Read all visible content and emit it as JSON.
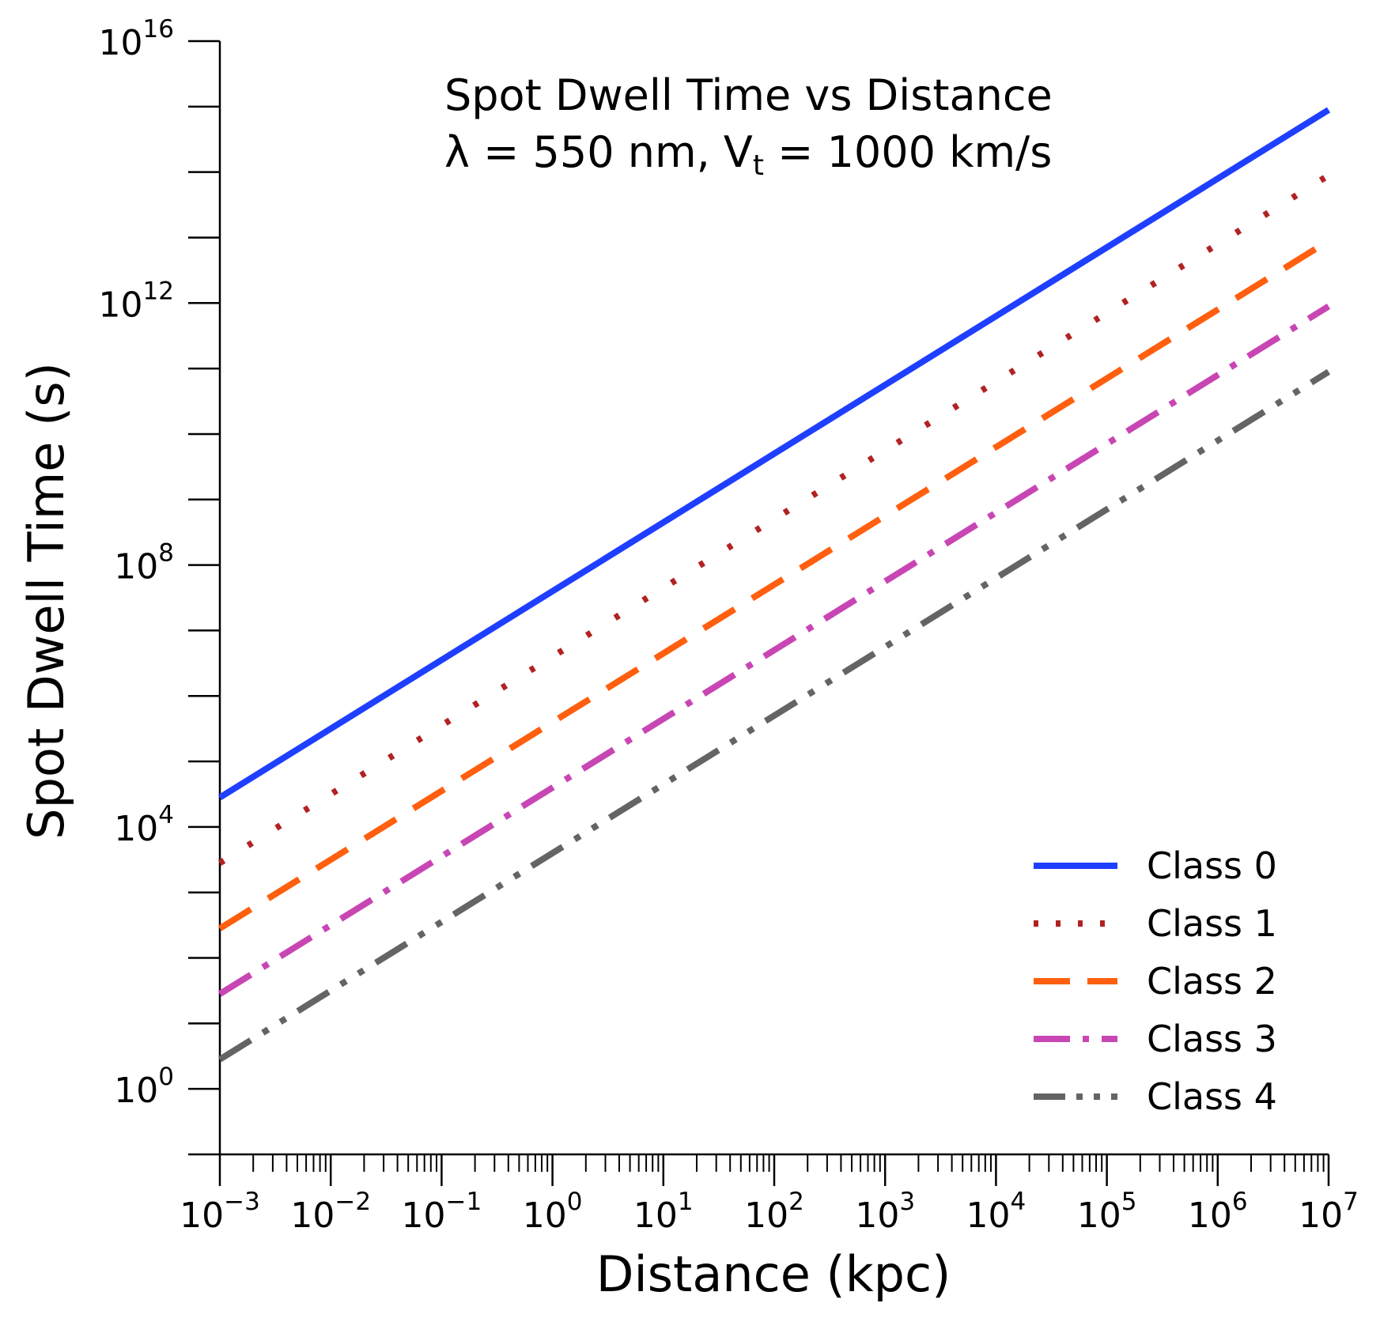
{
  "title": {
    "line1": "Spot Dwell Time vs Distance",
    "line2_prefix": "λ = 550 nm, V",
    "line2_sub": "t",
    "line2_suffix": " = 1000 km/s"
  },
  "chart_data": {
    "type": "line",
    "title": "Spot Dwell Time vs Distance λ = 550 nm, Vt = 1000 km/s",
    "xlabel": "Distance (kpc)",
    "ylabel": "Spot Dwell Time (s)",
    "xscale": "log",
    "yscale": "log",
    "xlim_log10": [
      -3,
      7
    ],
    "ylim_log10": [
      -1,
      16
    ],
    "x_ticks": [
      {
        "base": "10",
        "exp": "−3"
      },
      {
        "base": "10",
        "exp": "−2"
      },
      {
        "base": "10",
        "exp": "−1"
      },
      {
        "base": "10",
        "exp": "0"
      },
      {
        "base": "10",
        "exp": "1"
      },
      {
        "base": "10",
        "exp": "2"
      },
      {
        "base": "10",
        "exp": "3"
      },
      {
        "base": "10",
        "exp": "4"
      },
      {
        "base": "10",
        "exp": "5"
      },
      {
        "base": "10",
        "exp": "6"
      },
      {
        "base": "10",
        "exp": "7"
      }
    ],
    "y_ticks": [
      {
        "base": "10",
        "exp": "0"
      },
      {
        "base": "10",
        "exp": "4"
      },
      {
        "base": "10",
        "exp": "8"
      },
      {
        "base": "10",
        "exp": "12"
      },
      {
        "base": "10",
        "exp": "16"
      }
    ],
    "legend_position": "lower-right",
    "grid": false,
    "series": [
      {
        "name": "Class 0",
        "color": "#1f3fff",
        "style": "solid",
        "x_log10": [
          -3,
          7
        ],
        "y_log10": [
          4.45,
          14.95
        ]
      },
      {
        "name": "Class 1",
        "color": "#b22222",
        "style": "dotted",
        "x_log10": [
          -3,
          7
        ],
        "y_log10": [
          3.45,
          13.95
        ]
      },
      {
        "name": "Class 2",
        "color": "#ff5f0f",
        "style": "dashed",
        "x_log10": [
          -3,
          7
        ],
        "y_log10": [
          2.45,
          12.95
        ]
      },
      {
        "name": "Class 3",
        "color": "#c846b4",
        "style": "dashdot",
        "x_log10": [
          -3,
          7
        ],
        "y_log10": [
          1.45,
          11.95
        ]
      },
      {
        "name": "Class 4",
        "color": "#646464",
        "style": "dashdotdot",
        "x_log10": [
          -3,
          7
        ],
        "y_log10": [
          0.45,
          10.95
        ]
      }
    ]
  }
}
